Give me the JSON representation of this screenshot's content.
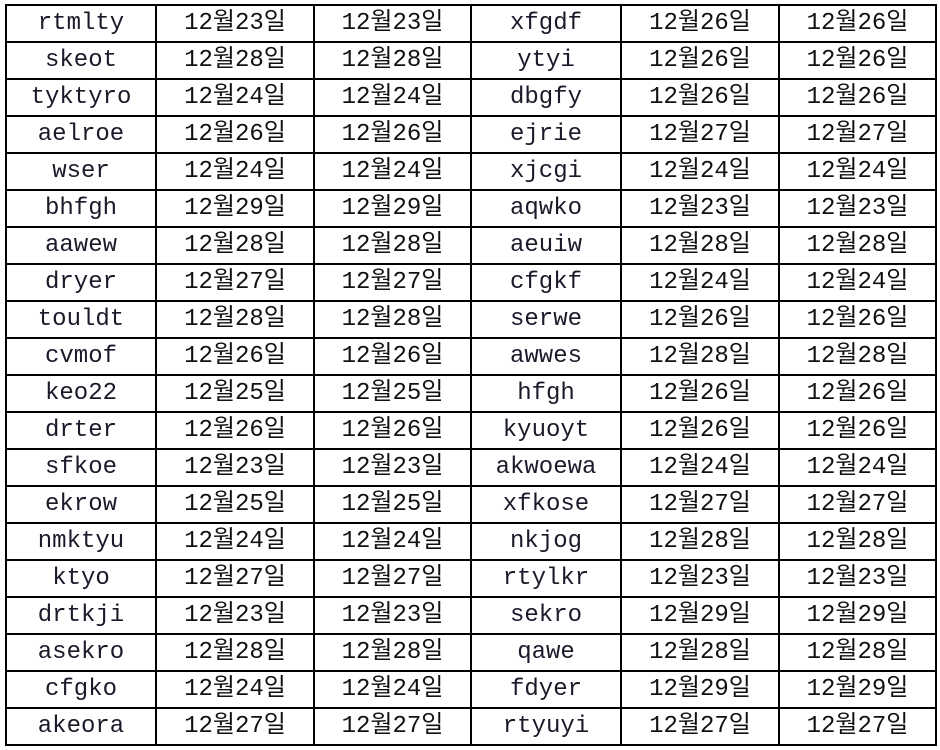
{
  "rows": [
    [
      "rtmlty",
      "12월23일",
      "12월23일",
      "xfgdf",
      "12월26일",
      "12월26일"
    ],
    [
      "skeot",
      "12월28일",
      "12월28일",
      "ytyi",
      "12월26일",
      "12월26일"
    ],
    [
      "tyktyro",
      "12월24일",
      "12월24일",
      "dbgfy",
      "12월26일",
      "12월26일"
    ],
    [
      "aelroe",
      "12월26일",
      "12월26일",
      "ejrie",
      "12월27일",
      "12월27일"
    ],
    [
      "wser",
      "12월24일",
      "12월24일",
      "xjcgi",
      "12월24일",
      "12월24일"
    ],
    [
      "bhfgh",
      "12월29일",
      "12월29일",
      "aqwko",
      "12월23일",
      "12월23일"
    ],
    [
      "aawew",
      "12월28일",
      "12월28일",
      "aeuiw",
      "12월28일",
      "12월28일"
    ],
    [
      "dryer",
      "12월27일",
      "12월27일",
      "cfgkf",
      "12월24일",
      "12월24일"
    ],
    [
      "touldt",
      "12월28일",
      "12월28일",
      "serwe",
      "12월26일",
      "12월26일"
    ],
    [
      "cvmof",
      "12월26일",
      "12월26일",
      "awwes",
      "12월28일",
      "12월28일"
    ],
    [
      "keo22",
      "12월25일",
      "12월25일",
      "hfgh",
      "12월26일",
      "12월26일"
    ],
    [
      "drter",
      "12월26일",
      "12월26일",
      "kyuoyt",
      "12월26일",
      "12월26일"
    ],
    [
      "sfkoe",
      "12월23일",
      "12월23일",
      "akwoewa",
      "12월24일",
      "12월24일"
    ],
    [
      "ekrow",
      "12월25일",
      "12월25일",
      "xfkose",
      "12월27일",
      "12월27일"
    ],
    [
      "nmktyu",
      "12월24일",
      "12월24일",
      "nkjog",
      "12월28일",
      "12월28일"
    ],
    [
      "ktyo",
      "12월27일",
      "12월27일",
      "rtylkr",
      "12월23일",
      "12월23일"
    ],
    [
      "drtkji",
      "12월23일",
      "12월23일",
      "sekro",
      "12월29일",
      "12월29일"
    ],
    [
      "asekro",
      "12월28일",
      "12월28일",
      "qawe",
      "12월28일",
      "12월28일"
    ],
    [
      "cfgko",
      "12월24일",
      "12월24일",
      "fdyer",
      "12월29일",
      "12월29일"
    ],
    [
      "akeora",
      "12월27일",
      "12월27일",
      "rtyuyi",
      "12월27일",
      "12월27일"
    ]
  ]
}
